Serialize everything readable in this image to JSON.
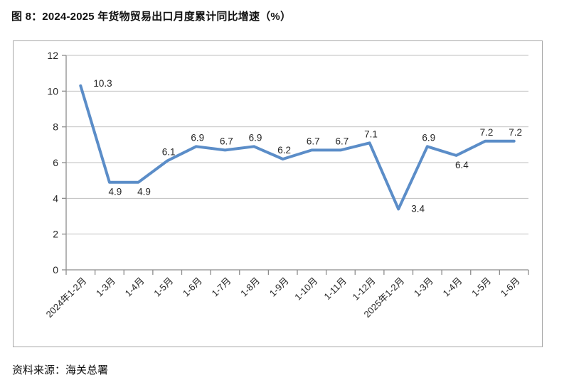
{
  "page": {
    "title": "图 8：2024-2025 年货物贸易出口月度累计同比增速（%）",
    "source": "资料来源：海关总署"
  },
  "chart_data": {
    "type": "line",
    "title": "2024-2025 年货物贸易出口月度累计同比增速（%）",
    "categories": [
      "2024年1-2月",
      "1-3月",
      "1-4月",
      "1-5月",
      "1-6月",
      "1-7月",
      "1-8月",
      "1-9月",
      "1-10月",
      "1-11月",
      "1-12月",
      "2025年1-2月",
      "1-3月",
      "1-4月",
      "1-5月",
      "1-6月"
    ],
    "values": [
      10.3,
      4.9,
      4.9,
      6.1,
      6.9,
      6.7,
      6.9,
      6.2,
      6.7,
      6.7,
      7.1,
      3.4,
      6.9,
      6.4,
      7.2,
      7.2
    ],
    "label_positions": [
      "above-right",
      "below",
      "below",
      "above",
      "above",
      "above",
      "above",
      "above",
      "above",
      "above",
      "above",
      "right",
      "above",
      "below",
      "above",
      "above"
    ],
    "xlabel": "",
    "ylabel": "",
    "ylim": [
      0,
      12
    ],
    "ytick_step": 2,
    "grid": true,
    "legend_position": "none",
    "line_color": "#5B8DC8",
    "grid_color": "#bfbfbf",
    "axis_color": "#8c8c8c"
  }
}
